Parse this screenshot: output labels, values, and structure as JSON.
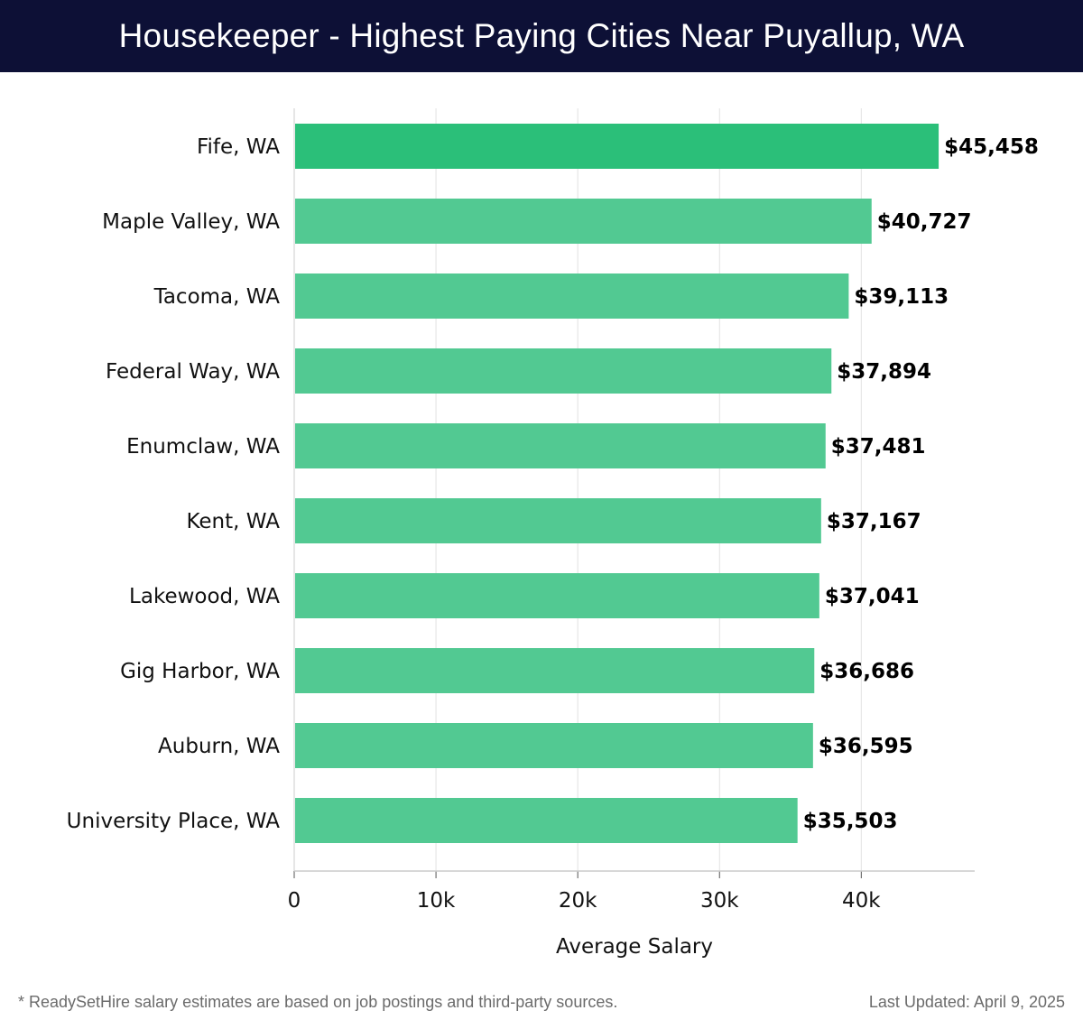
{
  "header": {
    "title": "Housekeeper - Highest Paying Cities Near Puyallup, WA"
  },
  "chart_data": {
    "type": "bar",
    "orientation": "horizontal",
    "title": "Housekeeper - Highest Paying Cities Near Puyallup, WA",
    "xlabel": "Average Salary",
    "ylabel": "",
    "xlim": [
      0,
      48000
    ],
    "xticks": [
      0,
      10000,
      20000,
      30000,
      40000
    ],
    "xtick_labels": [
      "0",
      "10k",
      "20k",
      "30k",
      "40k"
    ],
    "grid": "vertical",
    "categories": [
      "Fife, WA",
      "Maple Valley, WA",
      "Tacoma, WA",
      "Federal Way, WA",
      "Enumclaw, WA",
      "Kent, WA",
      "Lakewood, WA",
      "Gig Harbor, WA",
      "Auburn, WA",
      "University Place, WA"
    ],
    "values": [
      45458,
      40727,
      39113,
      37894,
      37481,
      37167,
      37041,
      36686,
      36595,
      35503
    ],
    "value_labels": [
      "$45,458",
      "$40,727",
      "$39,113",
      "$37,894",
      "$37,481",
      "$37,167",
      "$37,041",
      "$36,686",
      "$36,595",
      "$35,503"
    ],
    "colors": {
      "top_bar": "#2bbf79",
      "bar": "#52c992",
      "grid": "#e2e2e2",
      "axis": "#cccccc"
    }
  },
  "footer": {
    "note": "* ReadySetHire salary estimates are based on job postings and third-party sources.",
    "updated": "Last Updated: April 9, 2025"
  }
}
